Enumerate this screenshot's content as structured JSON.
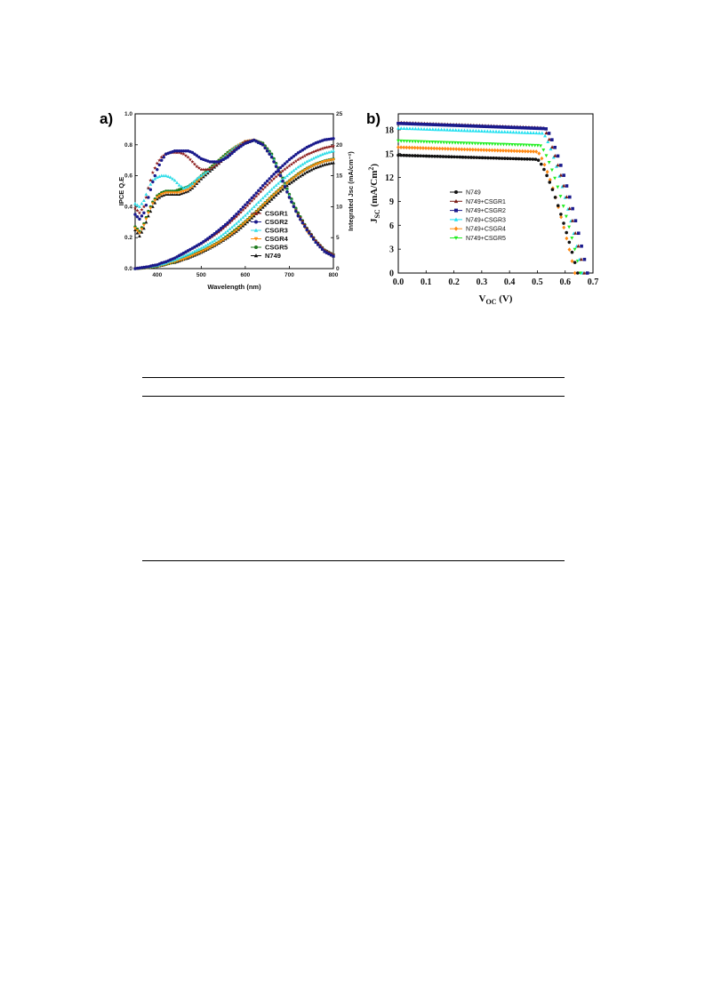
{
  "colors": {
    "CSGR1": "#8b1a1a",
    "CSGR2": "#1a1a8c",
    "CSGR3": "#33dde8",
    "CSGR4": "#ff8c10",
    "CSGR5": "#1f7a1f",
    "N749": "#111111",
    "N749_b": "#111111",
    "N749+CSGR1": "#7a1a14",
    "N749+CSGR2": "#1a1a8c",
    "N749+CSGR3": "#22e0f0",
    "N749+CSGR4": "#ff8a14",
    "N749+CSGR5": "#22ee22"
  },
  "chart_data": [
    {
      "panel_label": "a)",
      "type": "line",
      "xlabel": "Wavelength (nm)",
      "ylabel": "IPCE Q.E",
      "y2label": "Integrated Jsc (mA/cm⁻²)",
      "xlim": [
        350,
        800
      ],
      "ylim": [
        0,
        1.0
      ],
      "y2lim": [
        0,
        25
      ],
      "xticks": [
        "400",
        "500",
        "600",
        "700",
        "800"
      ],
      "yticks": [
        "0.0",
        "0.2",
        "0.4",
        "0.6",
        "0.8",
        "1.0"
      ],
      "y2ticks": [
        "0",
        "5",
        "10",
        "15",
        "20",
        "25"
      ],
      "legend": {
        "position": "lower-right",
        "entries": [
          "CSGR1",
          "CSGR2",
          "CSGR3",
          "CSGR4",
          "CSGR5",
          "N749"
        ]
      },
      "x": [
        350,
        360,
        370,
        380,
        390,
        400,
        410,
        420,
        430,
        440,
        450,
        460,
        470,
        480,
        490,
        500,
        520,
        540,
        560,
        580,
        600,
        620,
        640,
        660,
        680,
        700,
        720,
        740,
        760,
        780,
        800
      ],
      "series": [
        {
          "name": "CSGR1",
          "ipce": [
            0.39,
            0.36,
            0.4,
            0.52,
            0.62,
            0.68,
            0.72,
            0.74,
            0.75,
            0.75,
            0.75,
            0.74,
            0.72,
            0.69,
            0.66,
            0.64,
            0.64,
            0.68,
            0.73,
            0.78,
            0.82,
            0.83,
            0.8,
            0.72,
            0.6,
            0.46,
            0.35,
            0.26,
            0.18,
            0.12,
            0.09
          ],
          "jsc": [
            0.0,
            0.1,
            0.2,
            0.3,
            0.5,
            0.6,
            0.9,
            1.1,
            1.4,
            1.7,
            2.1,
            2.4,
            2.8,
            3.2,
            3.6,
            4.0,
            4.9,
            5.9,
            7.1,
            8.4,
            9.8,
            11.3,
            12.8,
            14.2,
            15.5,
            16.6,
            17.6,
            18.4,
            19.0,
            19.5,
            19.8
          ]
        },
        {
          "name": "CSGR2",
          "ipce": [
            0.35,
            0.32,
            0.36,
            0.46,
            0.56,
            0.64,
            0.7,
            0.74,
            0.75,
            0.76,
            0.76,
            0.76,
            0.76,
            0.75,
            0.73,
            0.71,
            0.69,
            0.69,
            0.72,
            0.77,
            0.81,
            0.83,
            0.8,
            0.72,
            0.6,
            0.46,
            0.34,
            0.25,
            0.17,
            0.11,
            0.08
          ],
          "jsc": [
            0.0,
            0.1,
            0.2,
            0.3,
            0.5,
            0.6,
            0.9,
            1.1,
            1.4,
            1.7,
            2.1,
            2.5,
            2.9,
            3.3,
            3.7,
            4.1,
            5.1,
            6.2,
            7.4,
            8.8,
            10.3,
            11.8,
            13.4,
            14.9,
            16.3,
            17.6,
            18.7,
            19.6,
            20.3,
            20.8,
            21.0
          ]
        },
        {
          "name": "CSGR3",
          "ipce": [
            0.42,
            0.4,
            0.44,
            0.52,
            0.57,
            0.59,
            0.6,
            0.6,
            0.59,
            0.57,
            0.54,
            0.52,
            0.53,
            0.55,
            0.58,
            0.6,
            0.64,
            0.69,
            0.74,
            0.79,
            0.82,
            0.83,
            0.8,
            0.73,
            0.61,
            0.47,
            0.35,
            0.25,
            0.17,
            0.12,
            0.09
          ],
          "jsc": [
            0.0,
            0.1,
            0.2,
            0.3,
            0.4,
            0.5,
            0.7,
            0.9,
            1.2,
            1.4,
            1.7,
            2.0,
            2.3,
            2.6,
            3.0,
            3.3,
            4.1,
            5.0,
            6.1,
            7.3,
            8.6,
            10.0,
            11.4,
            12.8,
            14.1,
            15.3,
            16.4,
            17.3,
            18.0,
            18.6,
            19.0
          ]
        },
        {
          "name": "CSGR4",
          "ipce": [
            0.26,
            0.23,
            0.28,
            0.36,
            0.42,
            0.46,
            0.48,
            0.49,
            0.49,
            0.49,
            0.49,
            0.5,
            0.51,
            0.53,
            0.56,
            0.59,
            0.64,
            0.69,
            0.74,
            0.79,
            0.82,
            0.83,
            0.8,
            0.72,
            0.6,
            0.46,
            0.34,
            0.24,
            0.17,
            0.11,
            0.08
          ],
          "jsc": [
            0.0,
            0.05,
            0.1,
            0.2,
            0.3,
            0.4,
            0.5,
            0.7,
            0.9,
            1.1,
            1.3,
            1.5,
            1.8,
            2.1,
            2.4,
            2.7,
            3.4,
            4.2,
            5.1,
            6.2,
            7.5,
            8.8,
            10.2,
            11.6,
            12.9,
            14.1,
            15.2,
            16.1,
            16.8,
            17.3,
            17.6
          ]
        },
        {
          "name": "CSGR5",
          "ipce": [
            0.27,
            0.24,
            0.29,
            0.37,
            0.43,
            0.47,
            0.49,
            0.5,
            0.5,
            0.5,
            0.51,
            0.52,
            0.53,
            0.55,
            0.57,
            0.6,
            0.65,
            0.7,
            0.75,
            0.79,
            0.82,
            0.83,
            0.81,
            0.74,
            0.62,
            0.48,
            0.36,
            0.26,
            0.18,
            0.12,
            0.09
          ],
          "jsc": [
            0.0,
            0.05,
            0.1,
            0.2,
            0.3,
            0.4,
            0.6,
            0.7,
            0.9,
            1.1,
            1.4,
            1.6,
            1.9,
            2.2,
            2.5,
            2.8,
            3.5,
            4.3,
            5.3,
            6.4,
            7.6,
            8.9,
            10.3,
            11.7,
            13.0,
            14.2,
            15.3,
            16.2,
            16.9,
            17.4,
            17.7
          ]
        },
        {
          "name": "N749",
          "ipce": [
            0.25,
            0.21,
            0.26,
            0.34,
            0.4,
            0.45,
            0.47,
            0.48,
            0.48,
            0.48,
            0.48,
            0.49,
            0.5,
            0.52,
            0.55,
            0.58,
            0.63,
            0.68,
            0.73,
            0.78,
            0.81,
            0.83,
            0.8,
            0.73,
            0.61,
            0.47,
            0.35,
            0.25,
            0.17,
            0.11,
            0.08
          ],
          "jsc": [
            0.0,
            0.05,
            0.1,
            0.2,
            0.3,
            0.4,
            0.5,
            0.7,
            0.9,
            1.0,
            1.2,
            1.5,
            1.7,
            2.0,
            2.3,
            2.6,
            3.3,
            4.1,
            5.0,
            6.0,
            7.2,
            8.5,
            9.9,
            11.2,
            12.5,
            13.7,
            14.7,
            15.6,
            16.3,
            16.8,
            17.1
          ]
        }
      ]
    },
    {
      "panel_label": "b)",
      "type": "scatter",
      "xlabel": "V",
      "xlabel_sub": "OC",
      "xlabel_unit": " (V)",
      "ylabel": "J",
      "ylabel_sub": "SC",
      "ylabel_unit": " (mA/Cm",
      "ylabel_sup": "2",
      "ylabel_close": ")",
      "xlim": [
        0,
        0.7
      ],
      "ylim": [
        0,
        20
      ],
      "xticks": [
        "0.0",
        "0.1",
        "0.2",
        "0.3",
        "0.4",
        "0.5",
        "0.6",
        "0.7"
      ],
      "yticks": [
        "0",
        "3",
        "6",
        "9",
        "12",
        "15",
        "18"
      ],
      "legend": {
        "position": "center-left",
        "entries": [
          "N749",
          "N749+CSGR1",
          "N749+CSGR2",
          "N749+CSGR3",
          "N749+CSGR4",
          "N749+CSGR5"
        ]
      },
      "series": [
        {
          "name": "N749",
          "marker": "circle",
          "jsc": 14.8,
          "voc": 0.645,
          "knee": 0.5
        },
        {
          "name": "N749+CSGR1",
          "marker": "triangle",
          "jsc": 18.9,
          "voc": 0.668,
          "knee": 0.52
        },
        {
          "name": "N749+CSGR2",
          "marker": "square",
          "jsc": 18.8,
          "voc": 0.68,
          "knee": 0.53
        },
        {
          "name": "N749+CSGR3",
          "marker": "triangle",
          "jsc": 18.2,
          "voc": 0.662,
          "knee": 0.52
        },
        {
          "name": "N749+CSGR4",
          "marker": "diamond",
          "jsc": 15.8,
          "voc": 0.635,
          "knee": 0.5
        },
        {
          "name": "N749+CSGR5",
          "marker": "triangle-down",
          "jsc": 16.6,
          "voc": 0.655,
          "knee": 0.51
        }
      ]
    }
  ]
}
